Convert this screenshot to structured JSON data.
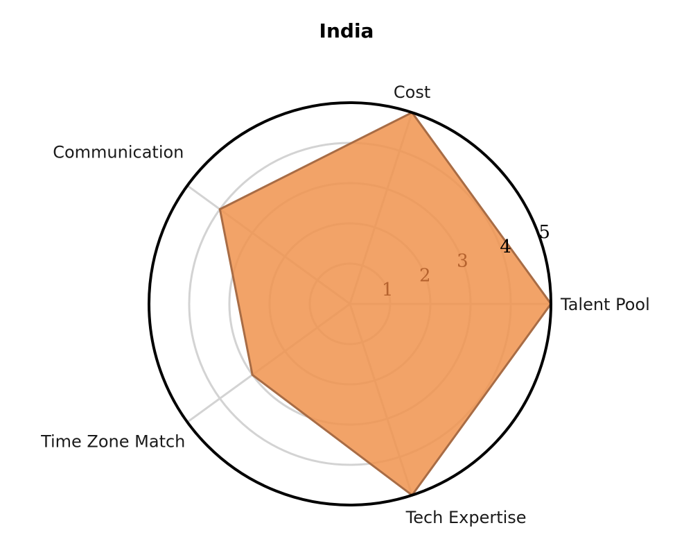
{
  "chart_data": {
    "type": "radar",
    "title": "India",
    "axes": [
      "Talent Pool",
      "Cost",
      "Communication",
      "Time Zone Match",
      "Tech Expertise"
    ],
    "series": [
      {
        "values": [
          5,
          5,
          4,
          3,
          5
        ]
      }
    ],
    "radial_ticks": [
      "1",
      "2",
      "3",
      "4",
      "5"
    ],
    "radial_range": [
      0,
      5
    ],
    "grid": true,
    "legend": "none"
  },
  "colors": {
    "fill": "#f0934e",
    "stroke": "#a86c45",
    "grid": "#d3d3d3",
    "outer_ring": "#000000",
    "tick_inside": "#b5622e",
    "tick_outside": "#000000"
  }
}
